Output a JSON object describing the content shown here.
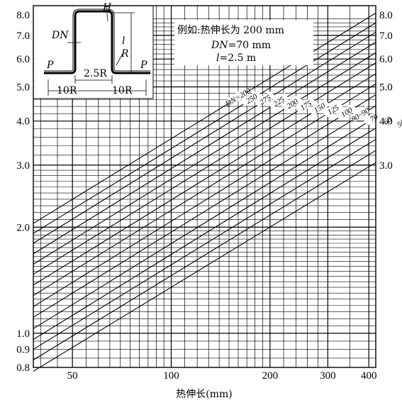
{
  "chart_data": {
    "type": "line",
    "title": "",
    "xlabel": "热伸长(mm)",
    "ylabel": "",
    "x_scale": "log",
    "y_scale": "log",
    "xlim": [
      38,
      420
    ],
    "ylim": [
      0.8,
      8.5
    ],
    "x_ticks": [
      {
        "value": 50,
        "label": "50"
      },
      {
        "value": 100,
        "label": "100"
      },
      {
        "value": 200,
        "label": "200"
      },
      {
        "value": 300,
        "label": "300"
      },
      {
        "value": 400,
        "label": "400"
      }
    ],
    "y_ticks_left": [
      {
        "value": 0.8,
        "label": "0.8"
      },
      {
        "value": 0.9,
        "label": "0.9"
      },
      {
        "value": 1.0,
        "label": "1.0"
      },
      {
        "value": 2.0,
        "label": "2.0"
      },
      {
        "value": 3.0,
        "label": "3.0"
      },
      {
        "value": 4.0,
        "label": "4.0"
      },
      {
        "value": 5.0,
        "label": "5.0"
      },
      {
        "value": 6.0,
        "label": "6.0"
      },
      {
        "value": 7.0,
        "label": "7.0"
      },
      {
        "value": 8.0,
        "label": "8.0"
      }
    ],
    "y_ticks_right": [
      {
        "value": 3.0,
        "label": "3.0"
      },
      {
        "value": 4.0,
        "label": "4.0"
      },
      {
        "value": 5.0,
        "label": "5.0"
      },
      {
        "value": 6.0,
        "label": "6.0"
      },
      {
        "value": 7.0,
        "label": "7.0"
      },
      {
        "value": 8.0,
        "label": "8.0"
      }
    ],
    "grid": true,
    "series": [
      {
        "name": "DN=200",
        "x": [
          38,
          420
        ],
        "y": [
          2.05,
          8.1
        ]
      },
      {
        "name": "250",
        "x": [
          38,
          420
        ],
        "y": [
          1.92,
          7.6
        ]
      },
      {
        "name": "275",
        "x": [
          38,
          420
        ],
        "y": [
          1.8,
          7.15
        ]
      },
      {
        "name": "225",
        "x": [
          38,
          420
        ],
        "y": [
          1.68,
          6.7
        ]
      },
      {
        "name": "200",
        "x": [
          38,
          420
        ],
        "y": [
          1.57,
          6.25
        ]
      },
      {
        "name": "175",
        "x": [
          38,
          420
        ],
        "y": [
          1.47,
          5.85
        ]
      },
      {
        "name": "150",
        "x": [
          38,
          420
        ],
        "y": [
          1.37,
          5.45
        ]
      },
      {
        "name": "125",
        "x": [
          38,
          420
        ],
        "y": [
          1.28,
          5.1
        ]
      },
      {
        "name": "100",
        "x": [
          38,
          420
        ],
        "y": [
          1.19,
          4.75
        ]
      },
      {
        "name": "80~90",
        "x": [
          38,
          420
        ],
        "y": [
          1.11,
          4.42
        ]
      },
      {
        "name": "70",
        "x": [
          38,
          420
        ],
        "y": [
          1.03,
          4.1
        ]
      },
      {
        "name": "60",
        "x": [
          38,
          420
        ],
        "y": [
          0.96,
          3.82
        ]
      },
      {
        "name": "50",
        "x": [
          38,
          420
        ],
        "y": [
          0.9,
          3.55
        ]
      },
      {
        "name": "40",
        "x": [
          38,
          420
        ],
        "y": [
          0.84,
          3.3
        ]
      },
      {
        "name": "32",
        "x": [
          38,
          420
        ],
        "y": [
          0.78,
          3.05
        ]
      }
    ]
  },
  "example": {
    "line1": "例如:热伸长为 200 mm",
    "dn_var": "DN",
    "dn_val": "=70 mm",
    "l_var": "l",
    "l_val": "=2.5 m"
  },
  "inset": {
    "H": "H",
    "DN": "DN",
    "l": "l",
    "R": "R",
    "P_left": "P",
    "P_right": "P",
    "w1": "2.5R",
    "w2": "10R",
    "w3": "10R"
  }
}
